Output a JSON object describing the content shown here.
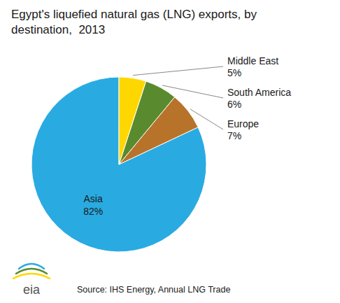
{
  "chart_data": {
    "type": "pie",
    "title": "Egypt's liquefied natural gas (LNG) exports, by\ndestination,  2013",
    "categories": [
      "Asia",
      "Europe",
      "South America",
      "Middle East"
    ],
    "values": [
      82,
      7,
      6,
      5
    ],
    "value_labels": [
      "82%",
      "7%",
      "6%",
      "5%"
    ],
    "colors": [
      "#29ABE2",
      "#B8732A",
      "#5A8A2E",
      "#FFD700"
    ],
    "data_labels": true,
    "annotations": [
      "Source: IHS Energy, Annual LNG Trade",
      "eia"
    ]
  }
}
